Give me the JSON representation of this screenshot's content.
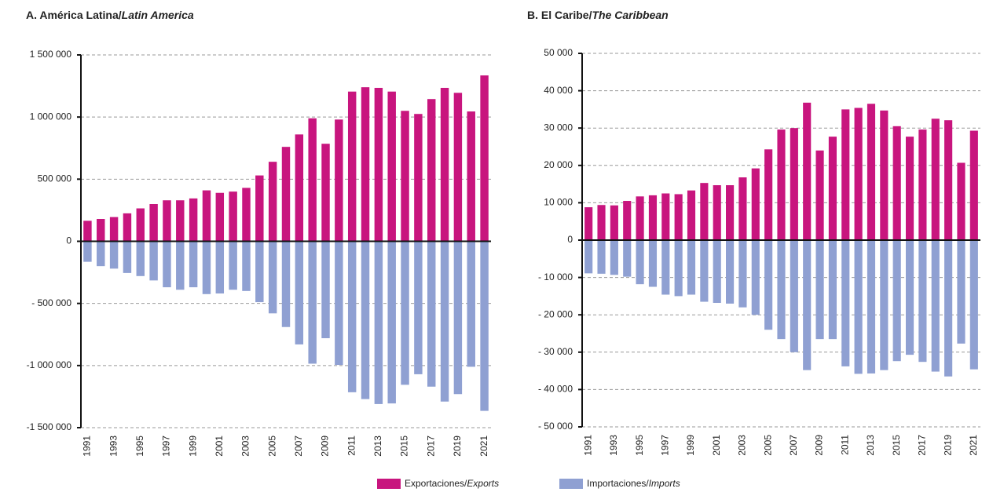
{
  "chart_data": [
    {
      "type": "bar",
      "title": [
        "A. América Latina/",
        "Latin America"
      ],
      "categories": [
        "1991",
        null,
        "1993",
        null,
        "1995",
        null,
        "1997",
        null,
        "1999",
        null,
        "2001",
        null,
        "2003",
        null,
        "2005",
        null,
        "2007",
        null,
        "2009",
        null,
        "2011",
        null,
        "2013",
        null,
        "2015",
        null,
        "2017",
        null,
        "2019",
        null,
        "2021"
      ],
      "series": [
        {
          "name": [
            "Exportaciones/",
            "Exports"
          ],
          "color": "#c8157e",
          "values": [
            165000,
            180000,
            195000,
            225000,
            265000,
            300000,
            330000,
            330000,
            345000,
            410000,
            390000,
            400000,
            430000,
            530000,
            640000,
            760000,
            860000,
            990000,
            785000,
            980000,
            1205000,
            1240000,
            1235000,
            1205000,
            1050000,
            1025000,
            1145000,
            1235000,
            1195000,
            1045000,
            1335000
          ]
        },
        {
          "name": [
            "Importaciones/",
            "Imports"
          ],
          "color": "#8fa0d2",
          "values": [
            -165000,
            -200000,
            -220000,
            -255000,
            -280000,
            -315000,
            -370000,
            -390000,
            -370000,
            -425000,
            -420000,
            -390000,
            -400000,
            -490000,
            -580000,
            -690000,
            -830000,
            -985000,
            -780000,
            -995000,
            -1215000,
            -1270000,
            -1310000,
            -1305000,
            -1155000,
            -1070000,
            -1170000,
            -1290000,
            -1230000,
            -1010000,
            -1365000
          ]
        }
      ],
      "ylim": [
        -1500000,
        1500000
      ],
      "yticks": [
        {
          "value": -1500000,
          "label": "-1 500 000"
        },
        {
          "value": -1000000,
          "label": "-1 000 000"
        },
        {
          "value": -500000,
          "label": "- 500 000"
        },
        0,
        {
          "value": 500000,
          "label": "500 000"
        },
        {
          "value": 1000000,
          "label": "1 000 000"
        },
        {
          "value": 1500000,
          "label": "1 500 000"
        }
      ],
      "grid": true
    },
    {
      "type": "bar",
      "title": [
        "B. El Caribe/",
        "The Caribbean"
      ],
      "categories": [
        "1991",
        null,
        "1993",
        null,
        "1995",
        null,
        "1997",
        null,
        "1999",
        null,
        "2001",
        null,
        "2003",
        null,
        "2005",
        null,
        "2007",
        null,
        "2009",
        null,
        "2011",
        null,
        "2013",
        null,
        "2015",
        null,
        "2017",
        null,
        "2019",
        null,
        "2021"
      ],
      "series": [
        {
          "color": "#c8157e",
          "values": [
            8800,
            9400,
            9300,
            10500,
            11700,
            12000,
            12500,
            12300,
            13300,
            15300,
            14700,
            14700,
            16800,
            19200,
            24300,
            29600,
            30000,
            36800,
            24000,
            27700,
            35000,
            35400,
            36500,
            34700,
            30500,
            27700,
            29600,
            32500,
            32100,
            20700,
            29300
          ]
        },
        {
          "color": "#8fa0d2",
          "values": [
            -8900,
            -9000,
            -9300,
            -9800,
            -11800,
            -12500,
            -14600,
            -15000,
            -14600,
            -16500,
            -16800,
            -17000,
            -18000,
            -20000,
            -24000,
            -26500,
            -30000,
            -34800,
            -26500,
            -26500,
            -33800,
            -35800,
            -35700,
            -34800,
            -32400,
            -30700,
            -32600,
            -35200,
            -36500,
            -27700,
            -34600
          ]
        }
      ],
      "ylim": [
        -50000,
        50000
      ],
      "yticks": [
        {
          "value": -50000,
          "label": "- 50 000"
        },
        {
          "value": -40000,
          "label": "- 40 000"
        },
        {
          "value": -30000,
          "label": "- 30 000"
        },
        {
          "value": -20000,
          "label": "- 20 000"
        },
        {
          "value": -10000,
          "label": "- 10 000"
        },
        0,
        {
          "value": 10000,
          "label": "10 000"
        },
        {
          "value": 20000,
          "label": "20 000"
        },
        {
          "value": 30000,
          "label": "30 000"
        },
        {
          "value": 40000,
          "label": "40 000"
        },
        {
          "value": 50000,
          "label": "50 000"
        }
      ],
      "grid": true
    }
  ]
}
